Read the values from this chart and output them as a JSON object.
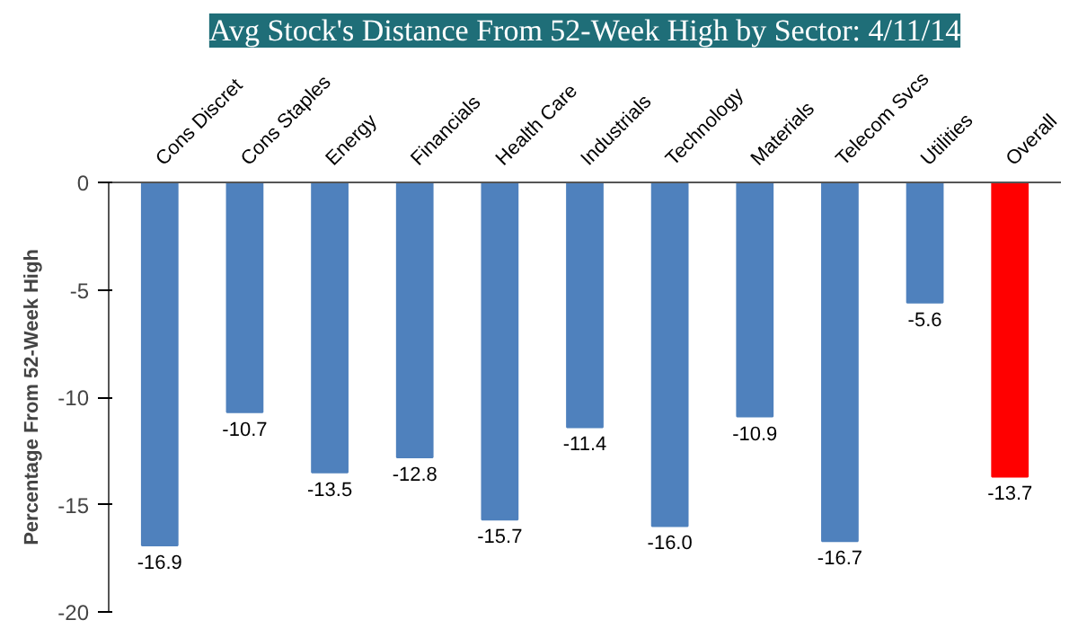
{
  "chart_data": {
    "type": "bar",
    "title": "Avg Stock's Distance From 52-Week High by Sector: 4/11/14",
    "ylabel": "Percentage From 52-Week High",
    "categories": [
      "Cons Discret",
      "Cons Staples",
      "Energy",
      "Financials",
      "Health Care",
      "Industrials",
      "Technology",
      "Materials",
      "Telecom Svcs",
      "Utilities",
      "Overall"
    ],
    "values": [
      -16.9,
      -10.7,
      -13.5,
      -12.8,
      -15.7,
      -11.4,
      -16.0,
      -10.9,
      -16.7,
      -5.6,
      -13.7
    ],
    "colors": [
      "#4f81bd",
      "#4f81bd",
      "#4f81bd",
      "#4f81bd",
      "#4f81bd",
      "#4f81bd",
      "#4f81bd",
      "#4f81bd",
      "#4f81bd",
      "#4f81bd",
      "#ff0000"
    ],
    "value_labels": [
      "-16.9",
      "-10.7",
      "-13.5",
      "-12.8",
      "-15.7",
      "-11.4",
      "-16.0",
      "-10.9",
      "-16.7",
      "-5.6",
      "-13.7"
    ],
    "ylim": [
      -20,
      0
    ],
    "yticks": [
      -20,
      -15,
      -10,
      -5,
      0
    ],
    "grid": false
  }
}
